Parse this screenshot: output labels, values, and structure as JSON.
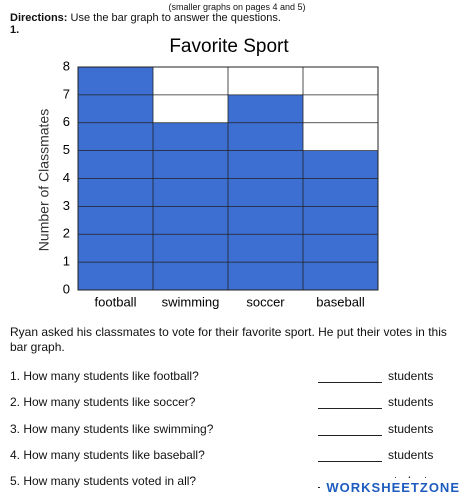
{
  "header": {
    "note": "(smaller graphs on pages 4 and 5)",
    "directions_label": "Directions:",
    "directions": "Use the bar graph to answer the questions.",
    "number": "1."
  },
  "chart_data": {
    "type": "bar",
    "title": "Favorite Sport",
    "y_label": "Number of Classmates",
    "categories": [
      "football",
      "swimming",
      "soccer",
      "baseball"
    ],
    "values": [
      8,
      6,
      7,
      5
    ],
    "color": "#3c6fd1",
    "ylim": [
      0,
      8
    ],
    "yticks": [
      0,
      1,
      2,
      3,
      4,
      5,
      6,
      7,
      8
    ],
    "grid": true
  },
  "passage": "Ryan asked his classmates to vote for their favorite sport. He put their votes in this bar graph.",
  "questions": [
    {
      "text": "1. How many students like football?",
      "unit": "students"
    },
    {
      "text": "2. How many students like soccer?",
      "unit": "students"
    },
    {
      "text": "3. How many students like swimming?",
      "unit": "students"
    },
    {
      "text": "4. How many students like baseball?",
      "unit": "students"
    },
    {
      "text": "5. How many students voted in all?",
      "unit": "students"
    }
  ],
  "watermark": "WORKSHEETZONE"
}
